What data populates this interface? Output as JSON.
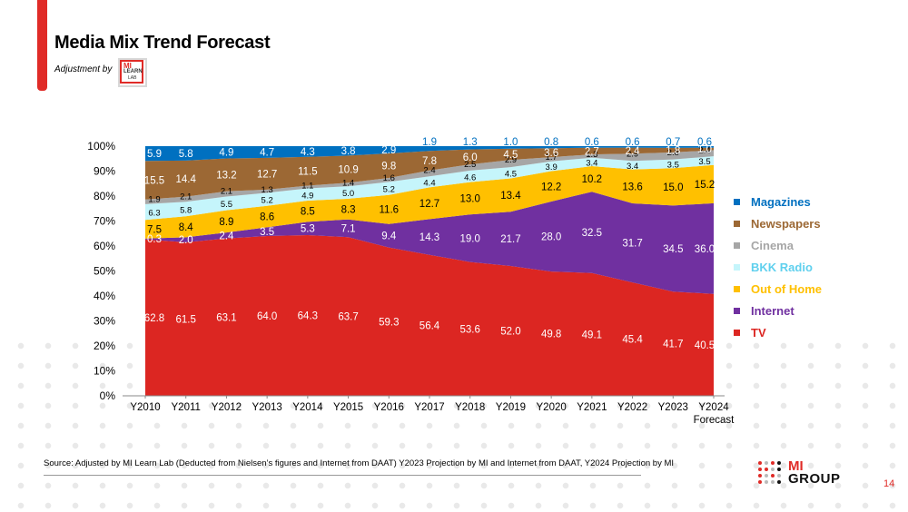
{
  "slide": {
    "title": "Media Mix Trend Forecast",
    "adjustment_label": "Adjustment by",
    "lab_logo": {
      "line1": "MI",
      "line2": "LEARN",
      "line3": "LAB"
    },
    "source": "Source: Adjusted by MI Learn Lab (Deducted  from Nielsen’s figures and Internet from DAAT) Y2023 Projection by MI and Internet from DAAT, Y2024 Projection by MI",
    "brand": {
      "line1": "MI",
      "line2": "GROUP"
    },
    "page_number": "14",
    "accent_color": "#e02b27"
  },
  "chart_data": {
    "type": "area",
    "stacked": "percent",
    "title": "Media Mix Trend Forecast",
    "xlabel": "",
    "ylabel": "",
    "ylim": [
      0,
      100
    ],
    "y_ticks": [
      "0%",
      "10%",
      "20%",
      "30%",
      "40%",
      "50%",
      "60%",
      "70%",
      "80%",
      "90%",
      "100%"
    ],
    "categories": [
      "Y2010",
      "Y2011",
      "Y2012",
      "Y2013",
      "Y2014",
      "Y2015",
      "Y2016",
      "Y2017",
      "Y2018",
      "Y2019",
      "Y2020",
      "Y2021",
      "Y2022",
      "Y2023",
      "Y2024"
    ],
    "category_sublabels": [
      "",
      "",
      "",
      "",
      "",
      "",
      "",
      "",
      "",
      "",
      "",
      "",
      "",
      "",
      "Forecast"
    ],
    "grid": false,
    "legend_position": "right",
    "series": [
      {
        "name": "TV",
        "color": "#dc2622",
        "label_color": "#ffffff",
        "values": [
          62.8,
          61.5,
          63.1,
          64.0,
          64.3,
          63.7,
          59.3,
          56.4,
          53.6,
          52.0,
          49.8,
          49.1,
          45.4,
          41.7,
          40.5
        ]
      },
      {
        "name": "Internet",
        "color": "#7030a0",
        "label_color": "#ffffff",
        "values": [
          0.3,
          2.0,
          2.4,
          3.5,
          5.3,
          7.1,
          9.4,
          14.3,
          19.0,
          21.7,
          28.0,
          32.5,
          31.7,
          34.5,
          36.0
        ]
      },
      {
        "name": "Out of Home",
        "color": "#ffc000",
        "label_color": "#000000",
        "values": [
          7.5,
          8.4,
          8.9,
          8.6,
          8.5,
          8.3,
          11.6,
          12.7,
          13.0,
          13.4,
          12.2,
          10.2,
          13.6,
          15.0,
          15.2
        ]
      },
      {
        "name": "BKK Radio",
        "color": "#c5f5fb",
        "label_color": "#000000",
        "values": [
          6.3,
          5.8,
          5.5,
          5.2,
          4.9,
          5.0,
          5.2,
          4.4,
          4.6,
          4.5,
          3.9,
          3.4,
          3.4,
          3.5,
          3.5
        ]
      },
      {
        "name": "Cinema",
        "color": "#a6a6a6",
        "label_color": "#000000",
        "values": [
          1.9,
          2.1,
          2.1,
          1.3,
          1.1,
          1.4,
          1.6,
          2.4,
          2.5,
          2.9,
          1.7,
          1.3,
          2.9,
          2.8,
          2.4
        ]
      },
      {
        "name": "Newspapers",
        "color": "#9c6834",
        "label_color": "#ffffff",
        "values": [
          15.5,
          14.4,
          13.2,
          12.7,
          11.5,
          10.9,
          9.8,
          7.8,
          6.0,
          4.5,
          3.6,
          2.7,
          2.4,
          1.8,
          1.0
        ]
      },
      {
        "name": "Magazines",
        "color": "#0070c0",
        "label_color": "#ffffff",
        "values": [
          5.9,
          5.8,
          4.9,
          4.7,
          4.3,
          3.8,
          2.9,
          1.9,
          1.3,
          1.0,
          0.8,
          0.6,
          0.6,
          0.7,
          0.6
        ]
      }
    ],
    "legend_order": [
      "Magazines",
      "Newspapers",
      "Cinema",
      "BKK Radio",
      "Out of Home",
      "Internet",
      "TV"
    ]
  }
}
